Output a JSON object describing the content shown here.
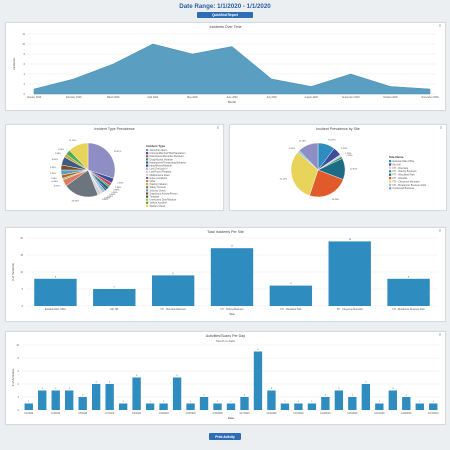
{
  "header": {
    "title": "Date Range: 1/1/2020 - 1/1/2020",
    "button_label": "Quickfind Report"
  },
  "footer": {
    "button_label": "Print Activity"
  },
  "colors": {
    "accent": "#2e6db3",
    "area": "#5a9ec1",
    "bar": "#2e8cbf",
    "title": "#2a5d9f"
  },
  "chart_data": [
    {
      "type": "area",
      "title": "Incidents Over Time",
      "xlabel": "Month",
      "ylabel": "Incidents",
      "x": [
        "January 2020",
        "February 2020",
        "March 2020",
        "April 2020",
        "May 2020",
        "June 2020",
        "July 2020",
        "August 2020",
        "September 2020",
        "October 2020",
        "November 2020"
      ],
      "values": [
        1,
        3,
        6,
        10,
        8,
        9.5,
        3,
        1.5,
        4,
        1.5,
        1
      ],
      "ylim": [
        0,
        12
      ],
      "yticks": [
        0,
        2,
        4,
        6,
        8,
        10,
        12
      ]
    },
    {
      "type": "pie",
      "title": "Incident Type Prevalence",
      "legend_title": "Incident Type",
      "slice_colors": [
        "#8e8ec4",
        "#3a4e9b",
        "#d2434d",
        "#2b9d6f",
        "#1e6b86",
        "#5b3b85",
        "#8ecae6",
        "#f0c2d2",
        "#d0d0d0",
        "#6c757d",
        "#e07a5f",
        "#9cbd6b",
        "#b5651d",
        "#5a9ec1",
        "#7a4e2d",
        "#3d5a80",
        "#c2a83e",
        "#4caf50",
        "#e9d45b"
      ],
      "values": [
        29.41,
        2.94,
        1.96,
        0.98,
        1.96,
        0.98,
        1.96,
        0.98,
        1.96,
        20.59,
        3.92,
        0.98,
        1.96,
        2.94,
        2.94,
        4.9,
        1.96,
        2.94,
        11.76
      ],
      "labels": [
        "29.41%",
        "2.94%",
        "1.96%",
        "0.98%",
        "1.96%",
        "0.98%",
        "1.96%",
        "0.98%",
        "1.96%",
        "20.59%",
        "3.92%",
        "0.98%",
        "1.96%",
        "2.94%",
        "2.94%",
        "4.90%",
        "1.96%",
        "2.94%",
        "11.76%"
      ],
      "legend": [
        "Alarm/Fire Alarm",
        "Criminal Mischief/Theft/Vandalism",
        "Disturbance/Disruptive Behavior",
        "Drug/Alcohol Violation",
        "Harassment/Threatening Behavior",
        "Injury/Illness/Medical",
        "Lock Out/Lock In",
        "Lost/Found Property",
        "Maintenance Issue",
        "Noise Complaint",
        "Other",
        "Parking Violation",
        "Safety Concern",
        "Security Check",
        "Suspicious Activity/Person",
        "Trespass",
        "Unsecured Door/Window",
        "Vehicle Accident",
        "Welfare Check"
      ]
    },
    {
      "type": "pie",
      "title": "Incident Prevalence by Site",
      "legend_title": "Site Name",
      "slice_colors": [
        "#2e8cbf",
        "#3a4e9b",
        "#f0c2d2",
        "#2b9d6f",
        "#1e6b86",
        "#e05a2b",
        "#e9d45b",
        "#8ecae6",
        "#8e8ec4"
      ],
      "values": [
        10.26,
        5.13,
        1.28,
        1.28,
        12.82,
        24.36,
        31.41,
        1.28,
        12.18
      ],
      "labels": [
        "10.26%",
        "5.13%",
        "1.28%",
        "1.28%",
        "12.82%",
        "24.36%",
        "31.41%",
        "1.28%",
        "12.18%"
      ],
      "legend": [
        "Eastside Main Office",
        "Elm Hill",
        "FTI - Riverside",
        "FTI - Sinking Business",
        "FTI - Woodland Park",
        "FTI - Adelphia",
        "FTI - Cheyenne Mountain",
        "FTI - Broadmoor Business Park",
        "Crestwood Business"
      ]
    },
    {
      "type": "bar",
      "title": "Total Incidents Per Site",
      "xlabel": "Site",
      "ylabel": "# of Incidents",
      "categories": [
        "Eastside Main Office",
        "Elm Hill",
        "FTI - Riverside Business",
        "FTI - Sinking Business",
        "FTI - Woodland Park",
        "FTI - Cheyenne Mountain",
        "FTI - Broadmoor Business Park"
      ],
      "values": [
        8,
        5,
        9,
        17,
        6,
        19,
        8
      ],
      "ylim": [
        0,
        20
      ],
      "yticks": [
        0,
        5,
        10,
        15,
        20
      ]
    },
    {
      "type": "bar",
      "title": "Activities/Scans Per Day",
      "subtitle": "Month to Date",
      "xlabel": "Date",
      "ylabel": "# of Activities",
      "categories": [
        "1/1/2020",
        "1/2/2020",
        "1/3/2020",
        "1/4/2020",
        "1/5/2020",
        "1/6/2020",
        "1/7/2020",
        "1/8/2020",
        "1/9/2020",
        "1/10/2020",
        "1/11/2020",
        "1/12/2020",
        "1/13/2020",
        "1/14/2020",
        "1/15/2020",
        "1/16/2020",
        "1/17/2020",
        "1/18/2020",
        "1/19/2020",
        "1/20/2020",
        "1/21/2020",
        "1/22/2020",
        "1/23/2020",
        "1/24/2020",
        "1/25/2020",
        "1/26/2020",
        "1/27/2020",
        "1/28/2020",
        "1/29/2020",
        "1/30/2020",
        "1/31/2020"
      ],
      "tick_labels": [
        "1/1/2020",
        "1/3/2020",
        "1/5/2020",
        "1/7/2020",
        "1/9/2020",
        "1/11/2020",
        "1/13/2020",
        "1/15/2020",
        "1/17/2020",
        "1/19/2020",
        "1/21/2020",
        "1/23/2020",
        "1/25/2020",
        "1/27/2020",
        "1/29/2020",
        "1/31/2020"
      ],
      "values": [
        1,
        3,
        3,
        3,
        2,
        4,
        4,
        1,
        5,
        1,
        1,
        5,
        1,
        2,
        1,
        1,
        2,
        9,
        3,
        1,
        1,
        1,
        2,
        3,
        2,
        4,
        1,
        3,
        2,
        1,
        1
      ],
      "ylim": [
        0,
        10
      ],
      "yticks": [
        0,
        2,
        4,
        6,
        8,
        10
      ]
    }
  ]
}
